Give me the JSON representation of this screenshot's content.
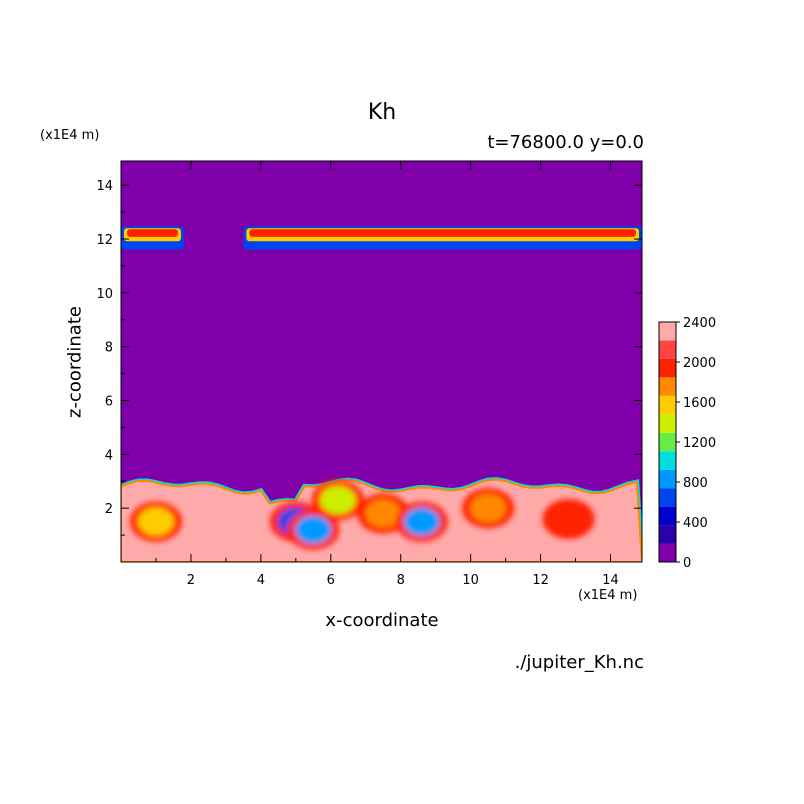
{
  "chart_data": {
    "type": "heatmap",
    "title": "Kh",
    "subtitle": "t=76800.0 y=0.0",
    "xlabel": "x-coordinate",
    "ylabel": "z-coordinate",
    "x_unit": "(x1E4 m)",
    "y_unit": "(x1E4 m)",
    "xlim": [
      0,
      14.9
    ],
    "ylim": [
      0,
      14.9
    ],
    "x_ticks": [
      2,
      4,
      6,
      8,
      10,
      12,
      14
    ],
    "y_ticks": [
      2,
      4,
      6,
      8,
      10,
      12,
      14
    ],
    "colorbar": {
      "levels": [
        0,
        200,
        400,
        600,
        800,
        1000,
        1200,
        1400,
        1600,
        1800,
        2000,
        2200,
        2400
      ],
      "labels": [
        0,
        400,
        800,
        1200,
        1600,
        2000,
        2400
      ],
      "colors": [
        "#7f00aa",
        "#2a00aa",
        "#0000cc",
        "#0044ee",
        "#0099ff",
        "#00dddd",
        "#66ee44",
        "#ccee00",
        "#ffcc00",
        "#ff8800",
        "#ff2200",
        "#ff4444",
        "#ffaaaa"
      ]
    },
    "background_value": 0,
    "surface_layer": {
      "z_top_approx": 2.8,
      "dominant_value": 2400
    },
    "upper_layer": {
      "z_range_approx": [
        11.6,
        12.4
      ],
      "x_extents": [
        [
          0,
          1.8
        ],
        [
          3.5,
          14.9
        ]
      ]
    },
    "features": [
      {
        "x": 1.0,
        "z": 1.5,
        "value": 1600
      },
      {
        "x": 5.0,
        "z": 1.5,
        "value": 600
      },
      {
        "x": 5.5,
        "z": 1.2,
        "value": 900
      },
      {
        "x": 6.2,
        "z": 2.3,
        "value": 1400
      },
      {
        "x": 7.5,
        "z": 1.8,
        "value": 1800
      },
      {
        "x": 8.6,
        "z": 1.5,
        "value": 800
      },
      {
        "x": 10.5,
        "z": 2.0,
        "value": 1800
      },
      {
        "x": 12.8,
        "z": 1.6,
        "value": 2000
      }
    ]
  },
  "source_file": "./jupiter_Kh.nc"
}
